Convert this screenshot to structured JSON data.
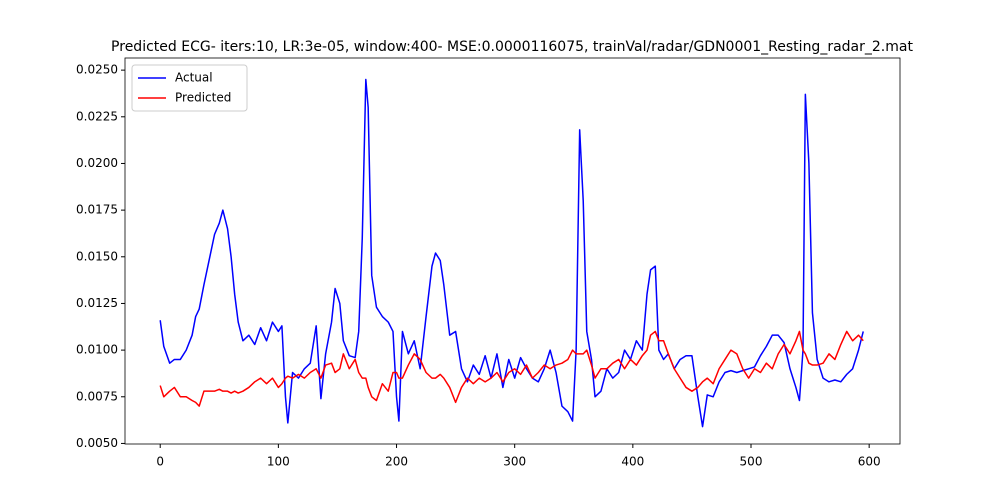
{
  "chart_data": {
    "type": "line",
    "title": "Predicted ECG- iters:10, LR:3e-05, window:400- MSE:0.0000116075, trainVal/radar/GDN0001_Resting_radar_2.mat",
    "x": [
      0,
      3,
      8,
      12,
      17,
      22,
      27,
      30,
      33,
      37,
      42,
      46,
      50,
      53,
      57,
      60,
      63,
      66,
      70,
      75,
      80,
      85,
      90,
      95,
      100,
      103,
      106,
      108,
      112,
      117,
      122,
      127,
      132,
      136,
      140,
      145,
      148,
      152,
      155,
      160,
      165,
      168,
      171,
      174,
      176,
      179,
      183,
      188,
      193,
      197,
      200,
      202,
      205,
      210,
      215,
      220,
      225,
      230,
      233,
      237,
      240,
      245,
      250,
      255,
      260,
      265,
      270,
      275,
      280,
      285,
      290,
      295,
      300,
      305,
      310,
      315,
      320,
      325,
      330,
      335,
      340,
      345,
      349,
      352,
      355,
      358,
      361,
      365,
      368,
      373,
      378,
      383,
      388,
      393,
      398,
      403,
      408,
      412,
      415,
      419,
      422,
      426,
      430,
      435,
      440,
      445,
      450,
      455,
      459,
      463,
      468,
      473,
      478,
      483,
      488,
      493,
      498,
      503,
      508,
      513,
      518,
      523,
      528,
      533,
      538,
      541,
      544,
      546,
      549,
      552,
      556,
      561,
      566,
      571,
      576,
      581,
      586,
      591,
      595
    ],
    "series": [
      {
        "name": "Actual",
        "color": "#0000ff",
        "values": [
          0.0116,
          0.0102,
          0.0093,
          0.0095,
          0.0095,
          0.01,
          0.0108,
          0.0118,
          0.0122,
          0.0135,
          0.015,
          0.0162,
          0.0168,
          0.0175,
          0.0165,
          0.015,
          0.013,
          0.0115,
          0.0105,
          0.0108,
          0.0103,
          0.0112,
          0.0105,
          0.0115,
          0.011,
          0.0113,
          0.0075,
          0.0061,
          0.0088,
          0.0085,
          0.009,
          0.0093,
          0.0113,
          0.0074,
          0.0098,
          0.0115,
          0.0133,
          0.0125,
          0.0105,
          0.0097,
          0.0096,
          0.011,
          0.016,
          0.0245,
          0.023,
          0.014,
          0.0123,
          0.0118,
          0.0115,
          0.011,
          0.0075,
          0.0062,
          0.011,
          0.0098,
          0.0105,
          0.009,
          0.0118,
          0.0145,
          0.0152,
          0.0148,
          0.0135,
          0.0108,
          0.011,
          0.009,
          0.0083,
          0.0092,
          0.0087,
          0.0097,
          0.0085,
          0.0098,
          0.008,
          0.0095,
          0.0085,
          0.0096,
          0.009,
          0.0085,
          0.0083,
          0.009,
          0.01,
          0.0088,
          0.007,
          0.0067,
          0.0062,
          0.01,
          0.0218,
          0.018,
          0.011,
          0.0095,
          0.0075,
          0.0078,
          0.009,
          0.0085,
          0.0088,
          0.01,
          0.0095,
          0.0105,
          0.01,
          0.013,
          0.0143,
          0.0145,
          0.01,
          0.0095,
          0.0098,
          0.009,
          0.0095,
          0.0097,
          0.0097,
          0.0075,
          0.0059,
          0.0076,
          0.0075,
          0.0083,
          0.0088,
          0.0089,
          0.0088,
          0.0089,
          0.009,
          0.0091,
          0.0097,
          0.0102,
          0.0108,
          0.0108,
          0.0104,
          0.009,
          0.008,
          0.0073,
          0.01,
          0.0237,
          0.02,
          0.012,
          0.0095,
          0.0085,
          0.0083,
          0.0084,
          0.0083,
          0.0087,
          0.009,
          0.01,
          0.011
        ]
      },
      {
        "name": "Predicted",
        "color": "#ff0000",
        "values": [
          0.0081,
          0.0075,
          0.0078,
          0.008,
          0.0075,
          0.0075,
          0.0073,
          0.0072,
          0.007,
          0.0078,
          0.0078,
          0.0078,
          0.0079,
          0.0078,
          0.0078,
          0.0077,
          0.0078,
          0.0077,
          0.0078,
          0.008,
          0.0083,
          0.0085,
          0.0082,
          0.0085,
          0.008,
          0.0082,
          0.0085,
          0.0086,
          0.0085,
          0.0087,
          0.0085,
          0.0088,
          0.009,
          0.0085,
          0.0092,
          0.0093,
          0.0088,
          0.009,
          0.0098,
          0.009,
          0.0095,
          0.0088,
          0.0085,
          0.0085,
          0.008,
          0.0075,
          0.0073,
          0.0082,
          0.0078,
          0.0088,
          0.0088,
          0.0085,
          0.0085,
          0.0092,
          0.0098,
          0.0095,
          0.0088,
          0.0085,
          0.0085,
          0.0087,
          0.0085,
          0.008,
          0.0072,
          0.008,
          0.0085,
          0.0082,
          0.0085,
          0.0083,
          0.0085,
          0.0088,
          0.0083,
          0.0088,
          0.009,
          0.0087,
          0.0092,
          0.0085,
          0.0088,
          0.0092,
          0.009,
          0.0092,
          0.0093,
          0.0095,
          0.01,
          0.0098,
          0.0098,
          0.0098,
          0.01,
          0.0092,
          0.0085,
          0.009,
          0.009,
          0.0093,
          0.0095,
          0.009,
          0.0095,
          0.0092,
          0.0097,
          0.01,
          0.0108,
          0.011,
          0.0105,
          0.0105,
          0.0098,
          0.009,
          0.0085,
          0.008,
          0.0078,
          0.008,
          0.0083,
          0.0085,
          0.0082,
          0.009,
          0.0095,
          0.01,
          0.0098,
          0.009,
          0.0085,
          0.009,
          0.0088,
          0.0093,
          0.009,
          0.0098,
          0.0103,
          0.0098,
          0.0105,
          0.011,
          0.01,
          0.0098,
          0.0093,
          0.0092,
          0.0092,
          0.0093,
          0.0098,
          0.0095,
          0.0103,
          0.011,
          0.0105,
          0.0108,
          0.0105
        ]
      }
    ],
    "xlim": [
      -29.8,
      626.1
    ],
    "xticks": [
      0,
      100,
      200,
      300,
      400,
      500,
      600
    ],
    "ylim": [
      0.00497,
      0.02565
    ],
    "yticks": [
      {
        "value": 0.005,
        "label": "0.0050"
      },
      {
        "value": 0.0075,
        "label": "0.0075"
      },
      {
        "value": 0.01,
        "label": "0.0100"
      },
      {
        "value": 0.0125,
        "label": "0.0125"
      },
      {
        "value": 0.015,
        "label": "0.0150"
      },
      {
        "value": 0.0175,
        "label": "0.0175"
      },
      {
        "value": 0.02,
        "label": "0.0200"
      },
      {
        "value": 0.0225,
        "label": "0.0225"
      },
      {
        "value": 0.025,
        "label": "0.0250"
      }
    ],
    "legend": "upper-left"
  }
}
